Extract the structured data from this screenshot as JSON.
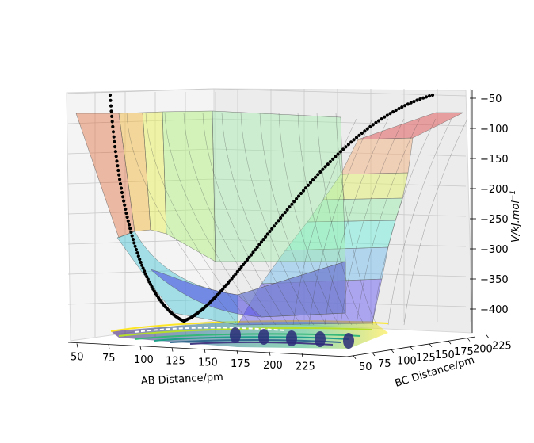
{
  "chart_data": {
    "type": "surface",
    "xlabel": "AB Distance/pm",
    "ylabel": "BC Distance/pm",
    "zlabel": "V/kJ.mol",
    "zlabel_sup": "−1",
    "x_ticks": [
      "50",
      "75",
      "100",
      "125",
      "150",
      "175",
      "200",
      "225"
    ],
    "y_ticks": [
      "50",
      "75",
      "100",
      "125",
      "150",
      "175",
      "200",
      "225"
    ],
    "z_ticks": [
      "−50",
      "−100",
      "−150",
      "−200",
      "−250",
      "−300",
      "−350",
      "−400"
    ],
    "xlim": [
      40,
      250
    ],
    "ylim": [
      40,
      240
    ],
    "zlim": [
      -435,
      -30
    ],
    "grid": true,
    "colormap": "jet",
    "contour_colormap": "viridis",
    "trajectory_color": "#000000",
    "pane_color": "#f2f2f2"
  }
}
